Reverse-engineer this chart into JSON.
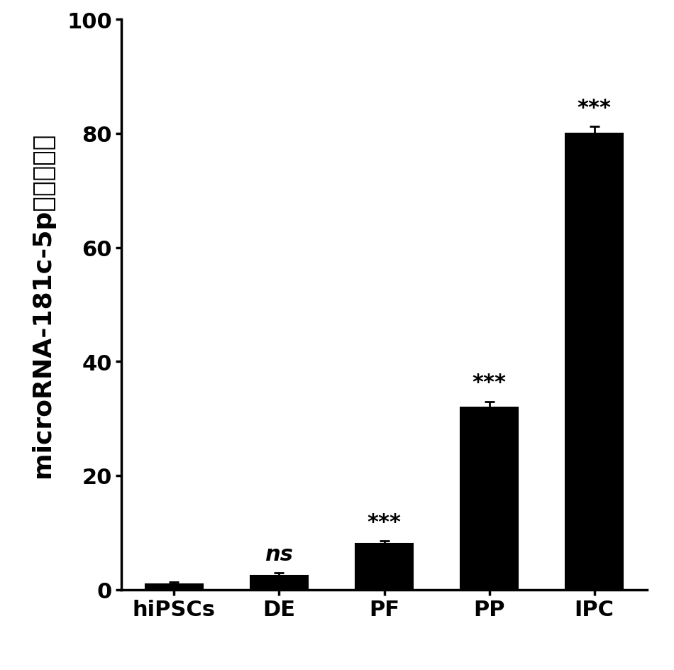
{
  "categories": [
    "hiPSCs",
    "DE",
    "PF",
    "PP",
    "IPC"
  ],
  "values": [
    1.0,
    2.5,
    8.0,
    32.0,
    80.0
  ],
  "errors": [
    0.3,
    0.4,
    0.5,
    1.0,
    1.2
  ],
  "bar_color": "#000000",
  "bar_edgecolor": "#000000",
  "significance": [
    "",
    "ns",
    "***",
    "***",
    "***"
  ],
  "ylabel_latin": "microRNA-181c-5p",
  "ylabel_chinese": "相对表达量",
  "ylim": [
    0,
    100
  ],
  "yticks": [
    0,
    20,
    40,
    60,
    80,
    100
  ],
  "sig_fontsize": 22,
  "ylabel_fontsize": 26,
  "tick_fontsize": 22,
  "xtick_fontsize": 22,
  "background_color": "#ffffff",
  "bar_width": 0.55
}
